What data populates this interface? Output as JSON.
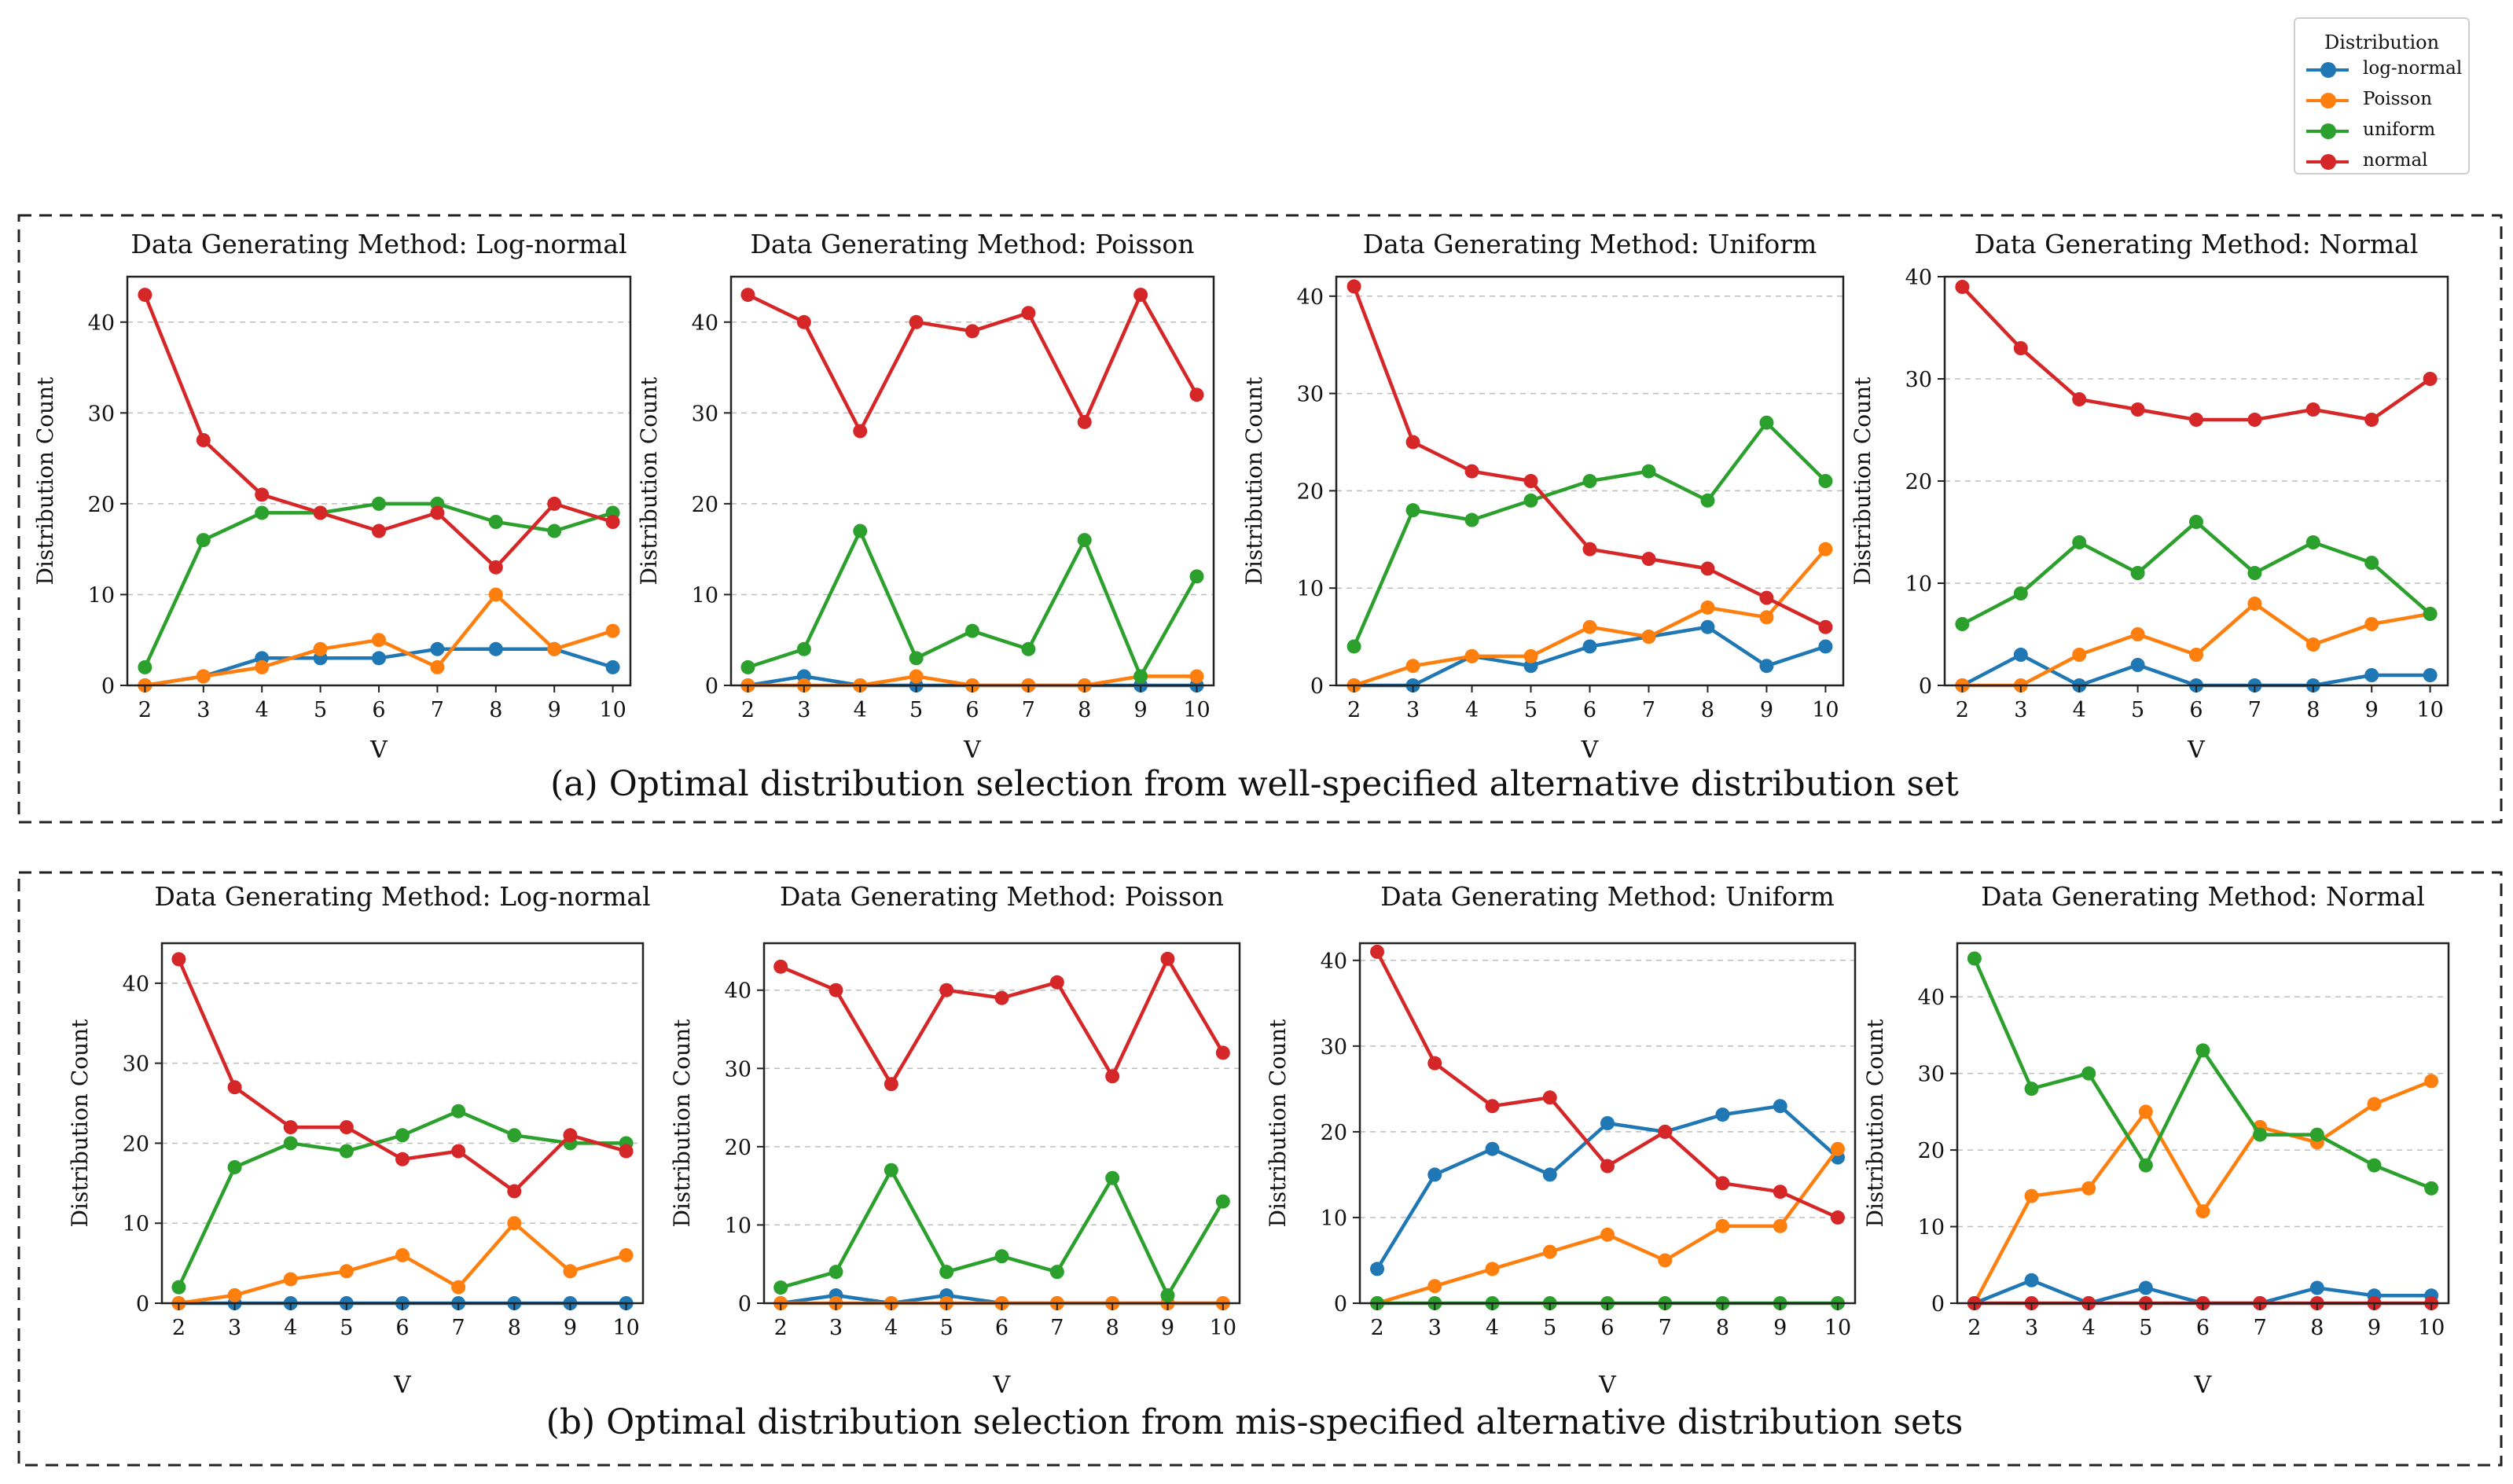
{
  "legend": {
    "title": "Distribution",
    "items": [
      {
        "key": "lognormal",
        "label": "log-normal"
      },
      {
        "key": "poisson",
        "label": "Poisson"
      },
      {
        "key": "uniform",
        "label": "uniform"
      },
      {
        "key": "normal",
        "label": "normal"
      }
    ]
  },
  "colors": {
    "lognormal": "#1f77b4",
    "poisson": "#ff7f0e",
    "uniform": "#2ca02c",
    "normal": "#d62728"
  },
  "panels": [
    {
      "caption": "(a) Optimal distribution selection from well-specified alternative distribution set"
    },
    {
      "caption": "(b) Optimal distribution selection from mis-specified alternative distribution sets"
    }
  ],
  "chart_data": [
    {
      "type": "line",
      "title": "Data Generating Method: Log-normal",
      "xlabel": "V",
      "ylabel": "Distribution Count",
      "x": [
        2,
        3,
        4,
        5,
        6,
        7,
        8,
        9,
        10
      ],
      "ylim": [
        0,
        45
      ],
      "yticks": [
        0,
        10,
        20,
        30,
        40
      ],
      "series": [
        {
          "name": "log-normal",
          "values": [
            0,
            1,
            3,
            3,
            3,
            4,
            4,
            4,
            2
          ]
        },
        {
          "name": "Poisson",
          "values": [
            0,
            1,
            2,
            4,
            5,
            2,
            10,
            4,
            6
          ]
        },
        {
          "name": "uniform",
          "values": [
            2,
            16,
            19,
            19,
            20,
            20,
            18,
            17,
            19
          ]
        },
        {
          "name": "normal",
          "values": [
            43,
            27,
            21,
            19,
            17,
            19,
            13,
            20,
            18
          ]
        }
      ]
    },
    {
      "type": "line",
      "title": "Data Generating Method: Poisson",
      "xlabel": "V",
      "ylabel": "Distribution Count",
      "x": [
        2,
        3,
        4,
        5,
        6,
        7,
        8,
        9,
        10
      ],
      "ylim": [
        0,
        45
      ],
      "yticks": [
        0,
        10,
        20,
        30,
        40
      ],
      "series": [
        {
          "name": "log-normal",
          "values": [
            0,
            1,
            0,
            0,
            0,
            0,
            0,
            0,
            0
          ]
        },
        {
          "name": "Poisson",
          "values": [
            0,
            0,
            0,
            1,
            0,
            0,
            0,
            1,
            1
          ]
        },
        {
          "name": "uniform",
          "values": [
            2,
            4,
            17,
            3,
            6,
            4,
            16,
            1,
            12
          ]
        },
        {
          "name": "normal",
          "values": [
            43,
            40,
            28,
            40,
            39,
            41,
            29,
            43,
            32
          ]
        }
      ]
    },
    {
      "type": "line",
      "title": "Data Generating Method: Uniform",
      "xlabel": "V",
      "ylabel": "Distribution Count",
      "x": [
        2,
        3,
        4,
        5,
        6,
        7,
        8,
        9,
        10
      ],
      "ylim": [
        0,
        42
      ],
      "yticks": [
        0,
        10,
        20,
        30,
        40
      ],
      "series": [
        {
          "name": "log-normal",
          "values": [
            0,
            0,
            3,
            2,
            4,
            5,
            6,
            2,
            4
          ]
        },
        {
          "name": "Poisson",
          "values": [
            0,
            2,
            3,
            3,
            6,
            5,
            8,
            7,
            14
          ]
        },
        {
          "name": "uniform",
          "values": [
            4,
            18,
            17,
            19,
            21,
            22,
            19,
            27,
            21
          ]
        },
        {
          "name": "normal",
          "values": [
            41,
            25,
            22,
            21,
            14,
            13,
            12,
            9,
            6
          ]
        }
      ]
    },
    {
      "type": "line",
      "title": "Data Generating Method: Normal",
      "xlabel": "V",
      "ylabel": "Distribution Count",
      "x": [
        2,
        3,
        4,
        5,
        6,
        7,
        8,
        9,
        10
      ],
      "ylim": [
        0,
        40
      ],
      "yticks": [
        0,
        10,
        20,
        30,
        40
      ],
      "series": [
        {
          "name": "log-normal",
          "values": [
            0,
            3,
            0,
            2,
            0,
            0,
            0,
            1,
            1
          ]
        },
        {
          "name": "Poisson",
          "values": [
            0,
            0,
            3,
            5,
            3,
            8,
            4,
            6,
            7
          ]
        },
        {
          "name": "uniform",
          "values": [
            6,
            9,
            14,
            11,
            16,
            11,
            14,
            12,
            7
          ]
        },
        {
          "name": "normal",
          "values": [
            39,
            33,
            28,
            27,
            26,
            26,
            27,
            26,
            30
          ]
        }
      ]
    },
    {
      "type": "line",
      "title": "Data Generating Method: Log-normal",
      "xlabel": "V",
      "ylabel": "Distribution Count",
      "x": [
        2,
        3,
        4,
        5,
        6,
        7,
        8,
        9,
        10
      ],
      "ylim": [
        0,
        45
      ],
      "yticks": [
        0,
        10,
        20,
        30,
        40
      ],
      "series": [
        {
          "name": "log-normal",
          "values": [
            0,
            0,
            0,
            0,
            0,
            0,
            0,
            0,
            0
          ]
        },
        {
          "name": "Poisson",
          "values": [
            0,
            1,
            3,
            4,
            6,
            2,
            10,
            4,
            6
          ]
        },
        {
          "name": "uniform",
          "values": [
            2,
            17,
            20,
            19,
            21,
            24,
            21,
            20,
            20
          ]
        },
        {
          "name": "normal",
          "values": [
            43,
            27,
            22,
            22,
            18,
            19,
            14,
            21,
            19
          ]
        }
      ]
    },
    {
      "type": "line",
      "title": "Data Generating Method: Poisson",
      "xlabel": "V",
      "ylabel": "Distribution Count",
      "x": [
        2,
        3,
        4,
        5,
        6,
        7,
        8,
        9,
        10
      ],
      "ylim": [
        0,
        46
      ],
      "yticks": [
        0,
        10,
        20,
        30,
        40
      ],
      "series": [
        {
          "name": "log-normal",
          "values": [
            0,
            1,
            0,
            1,
            0,
            0,
            0,
            0,
            0
          ]
        },
        {
          "name": "Poisson",
          "values": [
            0,
            0,
            0,
            0,
            0,
            0,
            0,
            0,
            0
          ]
        },
        {
          "name": "uniform",
          "values": [
            2,
            4,
            17,
            4,
            6,
            4,
            16,
            1,
            13
          ]
        },
        {
          "name": "normal",
          "values": [
            43,
            40,
            28,
            40,
            39,
            41,
            29,
            44,
            32
          ]
        }
      ]
    },
    {
      "type": "line",
      "title": "Data Generating Method: Uniform",
      "xlabel": "V",
      "ylabel": "Distribution Count",
      "x": [
        2,
        3,
        4,
        5,
        6,
        7,
        8,
        9,
        10
      ],
      "ylim": [
        0,
        42
      ],
      "yticks": [
        0,
        10,
        20,
        30,
        40
      ],
      "series": [
        {
          "name": "log-normal",
          "values": [
            4,
            15,
            18,
            15,
            21,
            20,
            22,
            23,
            17
          ]
        },
        {
          "name": "Poisson",
          "values": [
            0,
            2,
            4,
            6,
            8,
            5,
            9,
            9,
            18
          ]
        },
        {
          "name": "uniform",
          "values": [
            0,
            0,
            0,
            0,
            0,
            0,
            0,
            0,
            0
          ]
        },
        {
          "name": "normal",
          "values": [
            41,
            28,
            23,
            24,
            16,
            20,
            14,
            13,
            10
          ]
        }
      ]
    },
    {
      "type": "line",
      "title": "Data Generating Method: Normal",
      "xlabel": "V",
      "ylabel": "Distribution Count",
      "x": [
        2,
        3,
        4,
        5,
        6,
        7,
        8,
        9,
        10
      ],
      "ylim": [
        0,
        47
      ],
      "yticks": [
        0,
        10,
        20,
        30,
        40
      ],
      "series": [
        {
          "name": "log-normal",
          "values": [
            0,
            3,
            0,
            2,
            0,
            0,
            2,
            1,
            1
          ]
        },
        {
          "name": "Poisson",
          "values": [
            0,
            14,
            15,
            25,
            12,
            23,
            21,
            26,
            29
          ]
        },
        {
          "name": "uniform",
          "values": [
            45,
            28,
            30,
            18,
            33,
            22,
            22,
            18,
            15
          ]
        },
        {
          "name": "normal",
          "values": [
            0,
            0,
            0,
            0,
            0,
            0,
            0,
            0,
            0
          ]
        }
      ]
    }
  ]
}
